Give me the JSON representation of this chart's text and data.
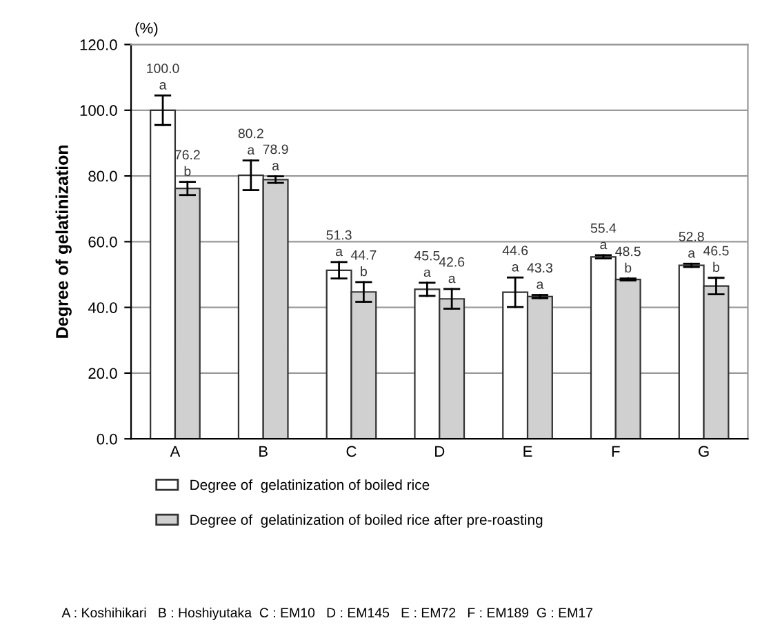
{
  "chart_data": {
    "type": "bar",
    "ylabel": "Degree of gelatinization",
    "categories": [
      "A",
      "B",
      "C",
      "D",
      "E",
      "F",
      "G"
    ],
    "series": [
      {
        "name": "Degree of  gelatinization of boiled rice",
        "color": "#ffffff",
        "values": [
          100.0,
          80.2,
          51.3,
          45.5,
          44.6,
          55.4,
          52.8
        ],
        "errors": [
          4.5,
          4.5,
          2.5,
          2,
          4.5,
          0.5,
          0.5
        ],
        "value_labels": [
          "100.0\na",
          "80.2\na",
          "51.3\na",
          "45.5\na",
          "44.6\na",
          "55.4\na",
          "52.8\na"
        ]
      },
      {
        "name": "Degree of  gelatinization of boiled rice after pre-roasting",
        "color": "#d0d0d0",
        "values": [
          76.2,
          78.9,
          44.7,
          42.6,
          43.3,
          48.5,
          46.5
        ],
        "errors": [
          2,
          1,
          3,
          3,
          0.5,
          0.3,
          2.5
        ],
        "value_labels": [
          "76.2\nb",
          "78.9\na",
          "44.7\nb",
          "42.6\na",
          "43.3\na",
          "48.5\nb",
          "46.5\nb"
        ]
      }
    ],
    "ylim": [
      0,
      120
    ],
    "yticks": [
      {
        "value": 0,
        "label": "0.0"
      },
      {
        "value": 20,
        "label": "20.0"
      },
      {
        "value": 40,
        "label": "40.0"
      },
      {
        "value": 60,
        "label": "60.0"
      },
      {
        "value": 80,
        "label": "80.0"
      },
      {
        "value": 100,
        "label": "100.0"
      },
      {
        "value": 120,
        "label": "120.0"
      }
    ],
    "grid": "y",
    "legend": "bottom",
    "annotations": [
      "(%)",
      "A : Koshihikari   B : Hoshiyutaka  C : EM10   D : EM145   E : EM72   F : EM189  G : EM17"
    ]
  }
}
